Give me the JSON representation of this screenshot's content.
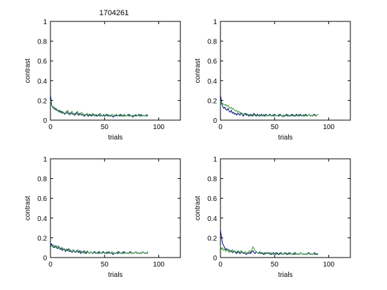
{
  "figure": {
    "title": "1704261"
  },
  "chart_data": [
    {
      "type": "line",
      "title": "1704261",
      "xlabel": "trials",
      "ylabel": "contrast",
      "xlim": [
        0,
        120
      ],
      "ylim": [
        0,
        1
      ],
      "xticks": [
        0,
        50,
        100
      ],
      "yticks": [
        0,
        0.2,
        0.4,
        0.6,
        0.8,
        1
      ],
      "grid": false,
      "series": [
        {
          "color": "#00007f",
          "values": [
            0.26,
            0.16,
            0.13,
            0.12,
            0.11,
            0.12,
            0.1,
            0.09,
            0.1,
            0.08,
            0.09,
            0.07,
            0.08,
            0.06,
            0.07,
            0.09,
            0.07,
            0.06,
            0.07,
            0.08,
            0.06,
            0.07,
            0.05,
            0.06,
            0.08,
            0.06,
            0.05,
            0.07,
            0.06,
            0.05,
            0.06,
            0.04,
            0.05,
            0.06,
            0.05,
            0.04,
            0.06,
            0.05,
            0.04,
            0.05,
            0.06,
            0.04,
            0.05,
            0.04,
            0.05,
            0.06,
            0.04,
            0.05,
            0.04,
            0.05,
            0.04,
            0.05,
            0.06,
            0.04,
            0.05,
            0.04,
            0.05,
            0.04,
            0.03,
            0.05,
            0.04,
            0.05,
            0.04,
            0.05,
            0.04,
            0.06,
            0.04,
            0.05,
            0.04,
            0.05,
            0.04,
            0.05,
            0.06,
            0.04,
            0.05,
            0.04,
            0.03,
            0.05,
            0.04,
            0.05,
            0.04,
            0.05,
            0.06,
            0.04,
            0.05,
            0.04,
            0.05,
            0.04,
            0.05,
            0.04,
            0.05
          ]
        },
        {
          "color": "#3a9a3a",
          "values": [
            0.2,
            0.15,
            0.13,
            0.14,
            0.12,
            0.1,
            0.11,
            0.09,
            0.08,
            0.1,
            0.07,
            0.09,
            0.08,
            0.07,
            0.06,
            0.08,
            0.1,
            0.07,
            0.05,
            0.08,
            0.09,
            0.06,
            0.07,
            0.05,
            0.07,
            0.09,
            0.06,
            0.05,
            0.07,
            0.08,
            0.05,
            0.06,
            0.04,
            0.06,
            0.07,
            0.05,
            0.04,
            0.06,
            0.05,
            0.07,
            0.05,
            0.04,
            0.06,
            0.05,
            0.04,
            0.05,
            0.07,
            0.05,
            0.04,
            0.06,
            0.05,
            0.04,
            0.05,
            0.06,
            0.04,
            0.05,
            0.04,
            0.06,
            0.05,
            0.04,
            0.05,
            0.06,
            0.04,
            0.05,
            0.06,
            0.04,
            0.05,
            0.04,
            0.06,
            0.05,
            0.04,
            0.05,
            0.04,
            0.06,
            0.05,
            0.04,
            0.05,
            0.04,
            0.05,
            0.06,
            0.04,
            0.05,
            0.04,
            0.05,
            0.06,
            0.04,
            0.05,
            0.04,
            0.05,
            0.06,
            0.05
          ]
        }
      ]
    },
    {
      "type": "line",
      "title": "",
      "xlabel": "trials",
      "ylabel": "contrast",
      "xlim": [
        0,
        120
      ],
      "ylim": [
        0,
        1
      ],
      "xticks": [
        0,
        50,
        100
      ],
      "yticks": [
        0,
        0.2,
        0.4,
        0.6,
        0.8,
        1
      ],
      "grid": false,
      "series": [
        {
          "color": "#00007f",
          "values": [
            0.26,
            0.18,
            0.14,
            0.12,
            0.13,
            0.11,
            0.1,
            0.12,
            0.09,
            0.08,
            0.1,
            0.07,
            0.08,
            0.06,
            0.07,
            0.05,
            0.07,
            0.06,
            0.05,
            0.07,
            0.06,
            0.04,
            0.06,
            0.07,
            0.05,
            0.06,
            0.04,
            0.05,
            0.06,
            0.04,
            0.05,
            0.07,
            0.05,
            0.04,
            0.06,
            0.05,
            0.04,
            0.05,
            0.06,
            0.04,
            0.05,
            0.04,
            0.06,
            0.05,
            0.04,
            0.05,
            0.06,
            0.04,
            0.05,
            0.04,
            0.06,
            0.05,
            0.04,
            0.05,
            0.04,
            0.06,
            0.05,
            0.04,
            0.05,
            0.04,
            0.05,
            0.06,
            0.04,
            0.05,
            0.04,
            0.05,
            0.06,
            0.04,
            0.05,
            0.04,
            0.06,
            0.05,
            0.04,
            0.05,
            0.06,
            0.04,
            0.05,
            0.04,
            0.05,
            0.06,
            0.04,
            0.05,
            0.06,
            0.04,
            0.05,
            0.04,
            0.05,
            0.06,
            0.04,
            0.05,
            0.06
          ]
        },
        {
          "color": "#3a9a3a",
          "values": [
            0.14,
            0.18,
            0.17,
            0.16,
            0.15,
            0.16,
            0.14,
            0.15,
            0.13,
            0.12,
            0.13,
            0.11,
            0.12,
            0.1,
            0.09,
            0.1,
            0.08,
            0.09,
            0.07,
            0.08,
            0.06,
            0.07,
            0.06,
            0.05,
            0.07,
            0.05,
            0.06,
            0.04,
            0.05,
            0.06,
            0.04,
            0.05,
            0.06,
            0.05,
            0.04,
            0.05,
            0.06,
            0.04,
            0.05,
            0.04,
            0.06,
            0.05,
            0.04,
            0.05,
            0.04,
            0.06,
            0.05,
            0.04,
            0.05,
            0.06,
            0.04,
            0.05,
            0.04,
            0.05,
            0.06,
            0.04,
            0.05,
            0.04,
            0.03,
            0.05,
            0.04,
            0.05,
            0.06,
            0.04,
            0.05,
            0.04,
            0.05,
            0.06,
            0.04,
            0.05,
            0.04,
            0.05,
            0.06,
            0.04,
            0.05,
            0.04,
            0.05,
            0.06,
            0.04,
            0.05,
            0.04,
            0.05,
            0.06,
            0.04,
            0.05,
            0.04,
            0.06,
            0.05,
            0.04,
            0.05,
            0.06
          ]
        }
      ]
    },
    {
      "type": "line",
      "title": "",
      "xlabel": "trials",
      "ylabel": "contrast",
      "xlim": [
        0,
        120
      ],
      "ylim": [
        0,
        1
      ],
      "xticks": [
        0,
        50,
        100
      ],
      "yticks": [
        0,
        0.2,
        0.4,
        0.6,
        0.8,
        1
      ],
      "grid": false,
      "series": [
        {
          "color": "#00007f",
          "values": [
            0.12,
            0.14,
            0.12,
            0.1,
            0.11,
            0.12,
            0.1,
            0.09,
            0.11,
            0.08,
            0.1,
            0.07,
            0.09,
            0.08,
            0.06,
            0.08,
            0.07,
            0.09,
            0.06,
            0.07,
            0.05,
            0.08,
            0.06,
            0.05,
            0.07,
            0.06,
            0.05,
            0.07,
            0.04,
            0.06,
            0.05,
            0.07,
            0.05,
            0.04,
            0.06,
            0.05,
            0.04,
            0.06,
            0.05,
            0.04,
            0.05,
            0.06,
            0.04,
            0.05,
            0.04,
            0.06,
            0.05,
            0.04,
            0.05,
            0.06,
            0.04,
            0.05,
            0.04,
            0.05,
            0.06,
            0.04,
            0.05,
            0.04,
            0.03,
            0.05,
            0.04,
            0.05,
            0.04,
            0.06,
            0.05,
            0.04,
            0.05,
            0.04,
            0.06,
            0.05,
            0.04,
            0.05,
            0.04,
            0.05,
            0.06,
            0.04,
            0.05,
            0.04,
            0.05,
            0.06,
            0.04,
            0.05,
            0.04,
            0.05,
            0.04,
            0.06,
            0.05,
            0.04,
            0.05,
            0.04,
            0.05
          ]
        },
        {
          "color": "#3a9a3a",
          "values": [
            0.1,
            0.12,
            0.11,
            0.13,
            0.1,
            0.11,
            0.09,
            0.12,
            0.1,
            0.09,
            0.08,
            0.1,
            0.08,
            0.09,
            0.07,
            0.09,
            0.08,
            0.06,
            0.08,
            0.07,
            0.06,
            0.08,
            0.07,
            0.05,
            0.06,
            0.08,
            0.06,
            0.05,
            0.07,
            0.05,
            0.06,
            0.04,
            0.06,
            0.05,
            0.07,
            0.05,
            0.04,
            0.06,
            0.05,
            0.04,
            0.06,
            0.05,
            0.04,
            0.05,
            0.06,
            0.04,
            0.05,
            0.04,
            0.06,
            0.05,
            0.04,
            0.05,
            0.06,
            0.04,
            0.05,
            0.04,
            0.05,
            0.06,
            0.04,
            0.05,
            0.04,
            0.05,
            0.06,
            0.04,
            0.05,
            0.04,
            0.05,
            0.06,
            0.04,
            0.05,
            0.04,
            0.05,
            0.04,
            0.06,
            0.05,
            0.04,
            0.05,
            0.04,
            0.05,
            0.06,
            0.04,
            0.05,
            0.04,
            0.05,
            0.04,
            0.06,
            0.05,
            0.04,
            0.05,
            0.04,
            0.06
          ]
        }
      ]
    },
    {
      "type": "line",
      "title": "",
      "xlabel": "trials",
      "ylabel": "contrast",
      "xlim": [
        0,
        120
      ],
      "ylim": [
        0,
        1
      ],
      "xticks": [
        0,
        50,
        100
      ],
      "yticks": [
        0,
        0.2,
        0.4,
        0.6,
        0.8,
        1
      ],
      "grid": false,
      "series": [
        {
          "color": "#00007f",
          "values": [
            0.28,
            0.2,
            0.14,
            0.12,
            0.1,
            0.08,
            0.09,
            0.07,
            0.08,
            0.06,
            0.07,
            0.05,
            0.06,
            0.07,
            0.05,
            0.04,
            0.06,
            0.05,
            0.04,
            0.05,
            0.06,
            0.04,
            0.05,
            0.04,
            0.03,
            0.05,
            0.04,
            0.05,
            0.04,
            0.06,
            0.07,
            0.05,
            0.04,
            0.06,
            0.05,
            0.04,
            0.05,
            0.04,
            0.05,
            0.04,
            0.03,
            0.05,
            0.04,
            0.05,
            0.04,
            0.05,
            0.04,
            0.03,
            0.04,
            0.05,
            0.04,
            0.03,
            0.05,
            0.04,
            0.03,
            0.04,
            0.05,
            0.04,
            0.03,
            0.04,
            0.05,
            0.04,
            0.03,
            0.04,
            0.05,
            0.04,
            0.03,
            0.04,
            0.03,
            0.05,
            0.04,
            0.03,
            0.04,
            0.03,
            0.05,
            0.04,
            0.03,
            0.04,
            0.03,
            0.04,
            0.03,
            0.05,
            0.04,
            0.03,
            0.04,
            0.03,
            0.04,
            0.05,
            0.03,
            0.04,
            0.03
          ]
        },
        {
          "color": "#3a9a3a",
          "values": [
            0.12,
            0.08,
            0.1,
            0.07,
            0.09,
            0.06,
            0.08,
            0.07,
            0.05,
            0.07,
            0.06,
            0.08,
            0.05,
            0.07,
            0.06,
            0.05,
            0.07,
            0.06,
            0.05,
            0.07,
            0.06,
            0.05,
            0.04,
            0.06,
            0.05,
            0.04,
            0.06,
            0.07,
            0.05,
            0.08,
            0.11,
            0.09,
            0.07,
            0.06,
            0.05,
            0.04,
            0.06,
            0.05,
            0.04,
            0.05,
            0.04,
            0.03,
            0.05,
            0.04,
            0.05,
            0.04,
            0.03,
            0.05,
            0.04,
            0.03,
            0.04,
            0.05,
            0.04,
            0.03,
            0.04,
            0.05,
            0.03,
            0.04,
            0.03,
            0.05,
            0.04,
            0.03,
            0.04,
            0.05,
            0.03,
            0.04,
            0.03,
            0.04,
            0.05,
            0.03,
            0.04,
            0.03,
            0.04,
            0.03,
            0.05,
            0.04,
            0.03,
            0.04,
            0.03,
            0.04,
            0.03,
            0.04,
            0.05,
            0.03,
            0.04,
            0.03,
            0.04,
            0.03,
            0.04,
            0.03,
            0.04
          ]
        }
      ]
    }
  ]
}
